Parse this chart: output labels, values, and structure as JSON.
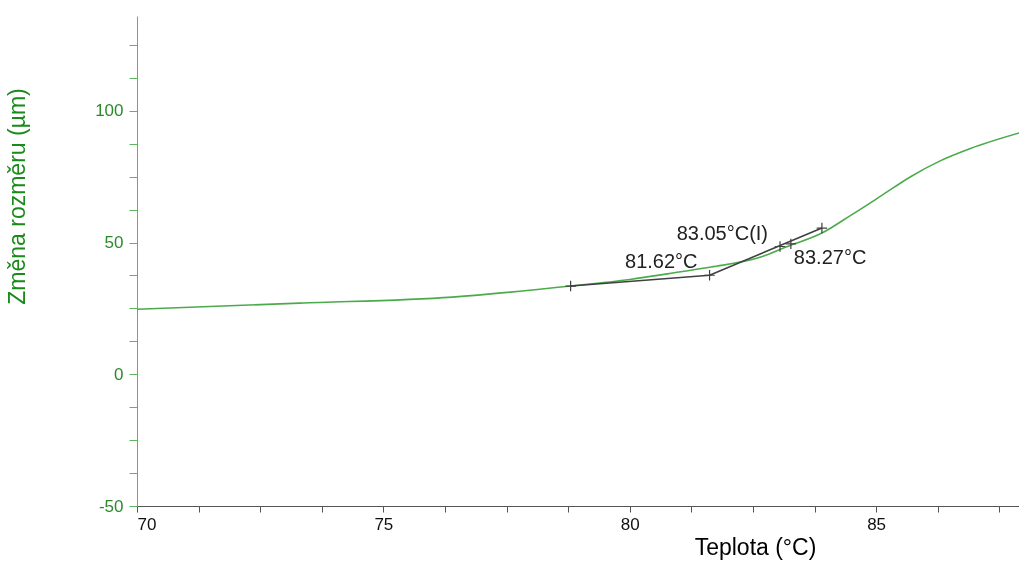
{
  "chart_data": {
    "type": "line",
    "xlabel": "Teplota (°C)",
    "ylabel": "Změna rozměru (µm)",
    "xlim": [
      70,
      87.9
    ],
    "ylim": [
      -50,
      136
    ],
    "xticks": [
      70,
      {
        "value": 71.25,
        "label": null
      },
      {
        "value": 72.5,
        "label": null
      },
      {
        "value": 73.75,
        "label": null
      },
      75,
      {
        "value": 76.25,
        "label": null
      },
      {
        "value": 77.5,
        "label": null
      },
      {
        "value": 78.75,
        "label": null
      },
      80,
      {
        "value": 81.25,
        "label": null
      },
      {
        "value": 82.5,
        "label": null
      },
      {
        "value": 83.75,
        "label": null
      },
      85,
      {
        "value": 86.25,
        "label": null
      },
      {
        "value": 87.5,
        "label": null
      }
    ],
    "yticks": [
      -50,
      {
        "value": -37.5,
        "label": null
      },
      {
        "value": -25,
        "label": null
      },
      {
        "value": -12.5,
        "label": null
      },
      0,
      {
        "value": 12.5,
        "label": null
      },
      {
        "value": 25,
        "label": null
      },
      {
        "value": 37.5,
        "label": null
      },
      50,
      {
        "value": 62.5,
        "label": null
      },
      {
        "value": 75,
        "label": null
      },
      {
        "value": 87.5,
        "label": null
      },
      100,
      {
        "value": 112.5,
        "label": null
      },
      {
        "value": 125,
        "label": null
      }
    ],
    "series": [
      {
        "type": "line",
        "color": "#4bab4b",
        "marker": "none",
        "x": [
          70,
          73.3,
          76.4,
          78.8,
          80,
          81,
          81.65,
          82.66,
          83.17,
          83.9,
          84.5,
          85.1,
          85.7,
          86.3,
          86.9,
          87.9
        ],
        "values": [
          24.7,
          27,
          29.3,
          33.5,
          36,
          38.8,
          40.7,
          44.5,
          48.3,
          53.6,
          60.5,
          67.7,
          75,
          81,
          85.6,
          91.6
        ]
      },
      {
        "color": "#404040",
        "marker": "cross",
        "x": [
          78.8,
          81.62,
          83.9
        ],
        "values": [
          33.5,
          37.6,
          55.5
        ]
      },
      {
        "type": "scatter",
        "color": "#404040",
        "marker": "cross",
        "x": [
          83.05,
          83.27
        ],
        "values": [
          48.5,
          49.5
        ]
      }
    ],
    "annotations": [
      {
        "text": "81.62°C",
        "x": 81.62,
        "y": 37.6
      },
      {
        "text": "83.05°C(I)",
        "x": 83.05,
        "y": 48.5
      },
      {
        "text": "83.27°C",
        "x": 83.27,
        "y": 49.5
      }
    ]
  }
}
